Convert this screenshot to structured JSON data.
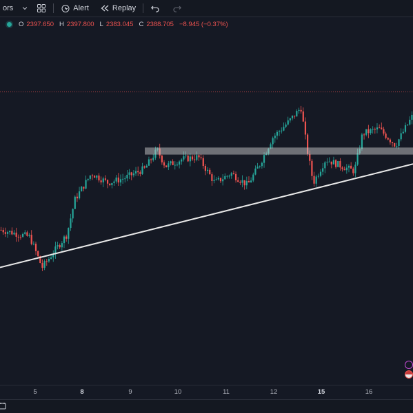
{
  "toolbar": {
    "indicators_label": "ors",
    "alert_label": "Alert",
    "replay_label": "Replay"
  },
  "legend": {
    "o_label": "O",
    "o_value": "2397.650",
    "h_label": "H",
    "h_value": "2397.800",
    "l_label": "L",
    "l_value": "2383.045",
    "c_label": "C",
    "c_value": "2388.705",
    "change": "−8.945 (−0.37%)"
  },
  "colors": {
    "background": "#151924",
    "up": "#26a69a",
    "down": "#ef5350",
    "trendline": "#e8e8e8",
    "zone": "#c8c8c8",
    "price_line": "#ef5350"
  },
  "chart_data": {
    "type": "candlestick",
    "x_ticks": [
      {
        "label": "5",
        "bold": false
      },
      {
        "label": "8",
        "bold": true
      },
      {
        "label": "9",
        "bold": false
      },
      {
        "label": "10",
        "bold": false
      },
      {
        "label": "11",
        "bold": false
      },
      {
        "label": "12",
        "bold": false
      },
      {
        "label": "15",
        "bold": true
      },
      {
        "label": "16",
        "bold": false
      }
    ],
    "last_close": 2388.705,
    "ylim": [
      2305,
      2425
    ],
    "zone": {
      "from_tick": "9",
      "low": 2378,
      "high": 2381
    },
    "trendline": [
      [
        0,
        2330
      ],
      [
        1,
        2374
      ]
    ],
    "candle_count": 190,
    "path_anchors": [
      [
        0,
        2346
      ],
      [
        0.07,
        2343
      ],
      [
        0.1,
        2330
      ],
      [
        0.16,
        2344
      ],
      [
        0.18,
        2359
      ],
      [
        0.22,
        2370
      ],
      [
        0.26,
        2366
      ],
      [
        0.3,
        2368
      ],
      [
        0.35,
        2372
      ],
      [
        0.38,
        2380
      ],
      [
        0.4,
        2373
      ],
      [
        0.44,
        2376
      ],
      [
        0.48,
        2377
      ],
      [
        0.52,
        2366
      ],
      [
        0.56,
        2370
      ],
      [
        0.6,
        2365
      ],
      [
        0.63,
        2374
      ],
      [
        0.66,
        2385
      ],
      [
        0.7,
        2392
      ],
      [
        0.73,
        2398
      ],
      [
        0.745,
        2380
      ],
      [
        0.76,
        2366
      ],
      [
        0.79,
        2376
      ],
      [
        0.83,
        2373
      ],
      [
        0.86,
        2371
      ],
      [
        0.88,
        2387
      ],
      [
        0.92,
        2389
      ],
      [
        0.96,
        2382
      ],
      [
        1.0,
        2394
      ]
    ]
  }
}
